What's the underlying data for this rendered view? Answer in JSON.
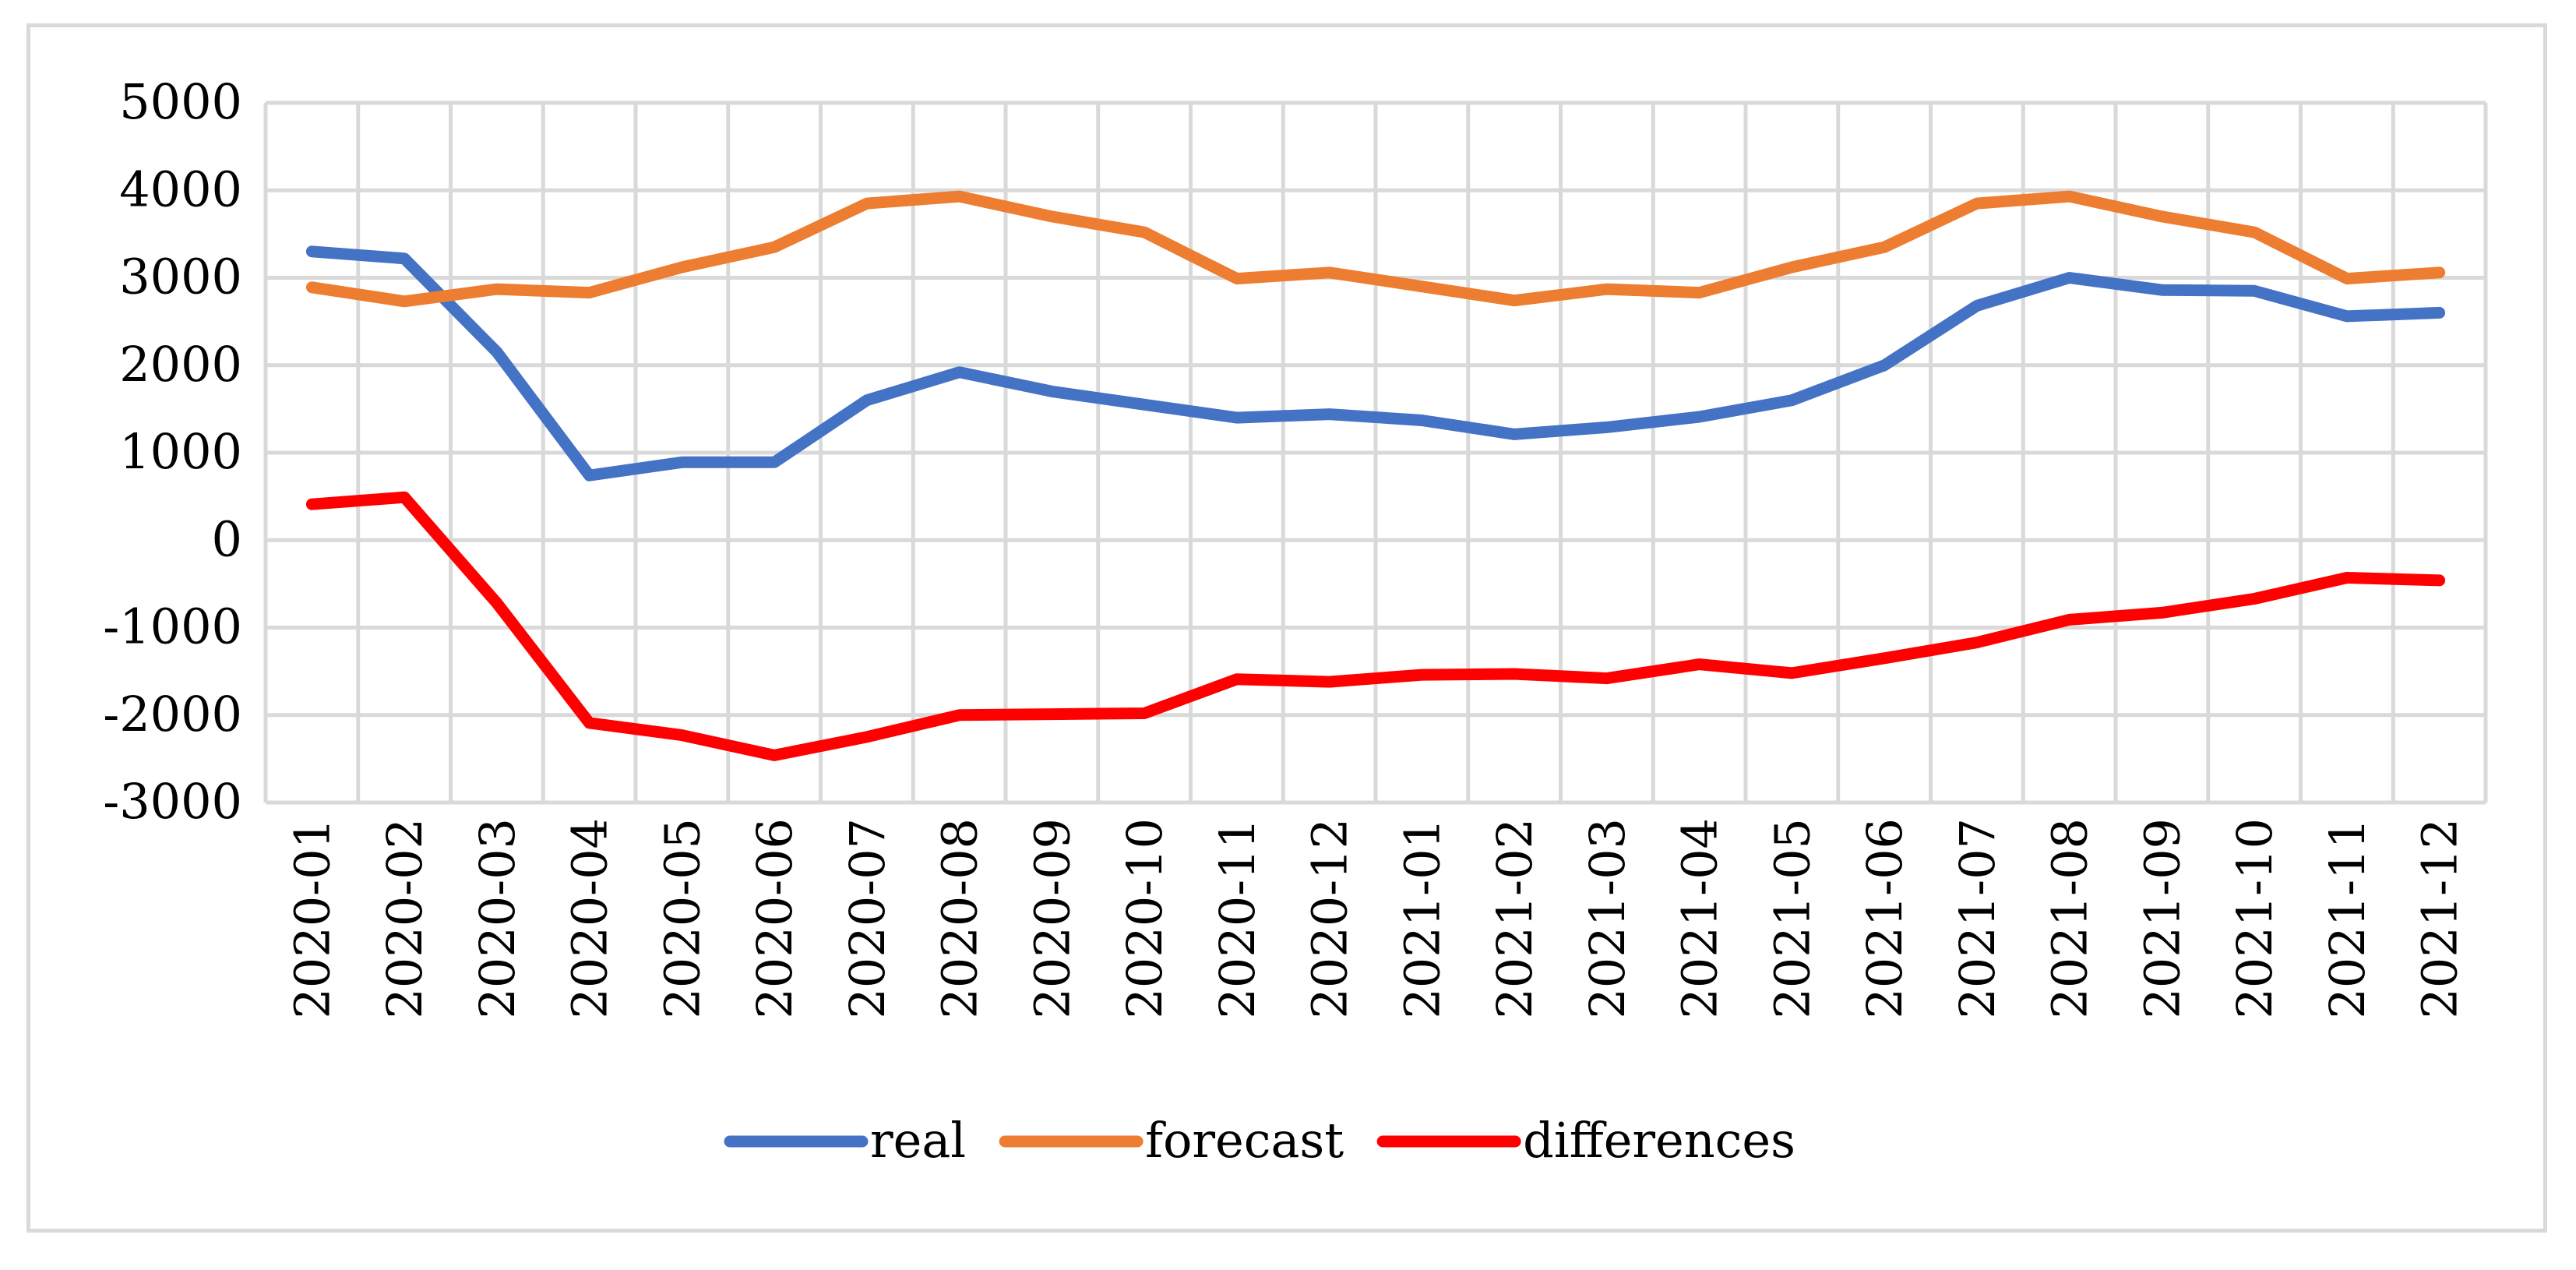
{
  "chart_data": {
    "type": "line",
    "title": "",
    "xlabel": "",
    "ylabel": "",
    "ylim": [
      -3000,
      5000
    ],
    "yticks": [
      "5000",
      "4000",
      "3000",
      "2000",
      "1000",
      "0",
      "-1000",
      "-2000",
      "-3000"
    ],
    "grid": true,
    "legend_position": "bottom",
    "categories": [
      "2020-01",
      "2020-02",
      "2020-03",
      "2020-04",
      "2020-05",
      "2020-06",
      "2020-07",
      "2020-08",
      "2020-09",
      "2020-10",
      "2020-11",
      "2020-12",
      "2021-01",
      "2021-02",
      "2021-03",
      "2021-04",
      "2021-05",
      "2021-06",
      "2021-07",
      "2021-08",
      "2021-09",
      "2021-10",
      "2021-11",
      "2021-12"
    ],
    "series": [
      {
        "name": "real",
        "color": "#4472c4",
        "values": [
          3300,
          3220,
          2150,
          740,
          890,
          890,
          1600,
          1920,
          1700,
          1550,
          1400,
          1440,
          1370,
          1210,
          1290,
          1410,
          1600,
          2000,
          2680,
          3000,
          2860,
          2850,
          2560,
          2600
        ]
      },
      {
        "name": "forecast",
        "color": "#ed7d31",
        "values": [
          2890,
          2730,
          2870,
          2830,
          3120,
          3350,
          3850,
          3930,
          3700,
          3520,
          2990,
          3060,
          2900,
          2740,
          2870,
          2830,
          3120,
          3350,
          3850,
          3930,
          3700,
          3520,
          2990,
          3060
        ]
      },
      {
        "name": "differences",
        "color": "#ff0000",
        "values": [
          410,
          490,
          -720,
          -2090,
          -2230,
          -2460,
          -2250,
          -2000,
          -1990,
          -1980,
          -1590,
          -1620,
          -1540,
          -1530,
          -1580,
          -1420,
          -1520,
          -1350,
          -1170,
          -910,
          -830,
          -670,
          -430,
          -460
        ]
      }
    ]
  }
}
